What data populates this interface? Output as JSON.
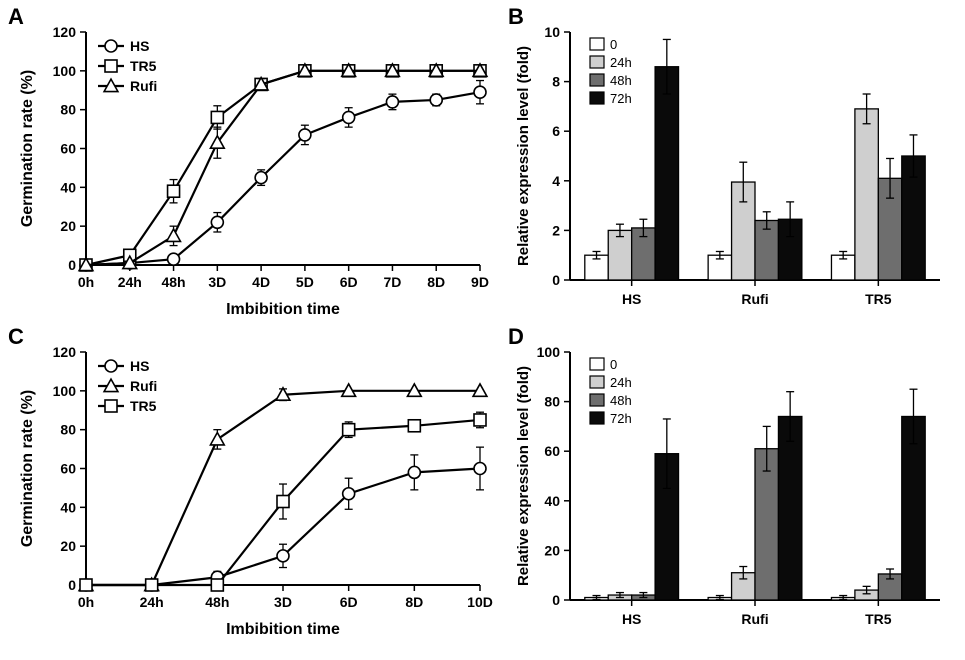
{
  "figure_width": 965,
  "figure_height": 660,
  "background_color": "#ffffff",
  "axis_color": "#000000",
  "error_bar_color": "#000000",
  "font_family": "Arial, Helvetica, sans-serif",
  "panelA": {
    "type": "line",
    "label": "A",
    "ylabel": "Germination rate (%)",
    "xlabel": "Imbibition time",
    "label_fontsize": 16,
    "label_fontweight": "bold",
    "tick_fontsize": 14,
    "tick_fontweight": "bold",
    "line_width": 2.2,
    "marker_size": 6,
    "marker_fill": "#ffffff",
    "marker_stroke": "#000000",
    "line_color": "#000000",
    "categories": [
      "0h",
      "24h",
      "48h",
      "3D",
      "4D",
      "5D",
      "6D",
      "7D",
      "8D",
      "9D"
    ],
    "ylim": [
      0,
      120
    ],
    "yticks": [
      0,
      20,
      40,
      60,
      80,
      100,
      120
    ],
    "legend": {
      "position": "top-left",
      "fontsize": 14
    },
    "series": [
      {
        "name": "HS",
        "marker": "circle",
        "values": [
          0,
          1,
          3,
          22,
          45,
          67,
          76,
          84,
          85,
          89
        ],
        "err": [
          0,
          1,
          2,
          5,
          4,
          5,
          5,
          4,
          3,
          6
        ]
      },
      {
        "name": "TR5",
        "marker": "square",
        "values": [
          0,
          5,
          38,
          76,
          93,
          100,
          100,
          100,
          100,
          100
        ],
        "err": [
          0,
          2,
          6,
          6,
          2,
          0,
          0,
          0,
          0,
          0
        ]
      },
      {
        "name": "Rufi",
        "marker": "triangle",
        "values": [
          0,
          1,
          15,
          63,
          93,
          100,
          100,
          100,
          100,
          100
        ],
        "err": [
          0,
          1,
          5,
          8,
          3,
          0,
          0,
          0,
          0,
          0
        ]
      }
    ]
  },
  "panelB": {
    "type": "bar",
    "label": "B",
    "ylabel": "Relative expression level (fold)",
    "label_fontsize": 15,
    "label_fontweight": "bold",
    "tick_fontsize": 14,
    "tick_fontweight": "bold",
    "groups": [
      "HS",
      "Rufi",
      "TR5"
    ],
    "subgroups": [
      "0",
      "24h",
      "48h",
      "72h"
    ],
    "bar_colors": [
      "#ffffff",
      "#cfcfcf",
      "#6e6e6e",
      "#0a0a0a"
    ],
    "bar_border": "#000000",
    "bar_width": 0.19,
    "ylim": [
      0,
      10
    ],
    "yticks": [
      0,
      2,
      4,
      6,
      8,
      10
    ],
    "values": [
      [
        1.0,
        2.0,
        2.1,
        8.6
      ],
      [
        1.0,
        3.95,
        2.4,
        2.45
      ],
      [
        1.0,
        6.9,
        4.1,
        5.0
      ]
    ],
    "err": [
      [
        0.15,
        0.25,
        0.35,
        1.1
      ],
      [
        0.15,
        0.8,
        0.35,
        0.7
      ],
      [
        0.15,
        0.6,
        0.8,
        0.85
      ]
    ],
    "legend": {
      "position": "top-left",
      "fontsize": 13
    }
  },
  "panelC": {
    "type": "line",
    "label": "C",
    "ylabel": "Germination rate (%)",
    "xlabel": "Imbibition time",
    "label_fontsize": 16,
    "label_fontweight": "bold",
    "tick_fontsize": 14,
    "tick_fontweight": "bold",
    "line_width": 2.2,
    "marker_size": 6,
    "marker_fill": "#ffffff",
    "marker_stroke": "#000000",
    "line_color": "#000000",
    "categories": [
      "0h",
      "24h",
      "48h",
      "3D",
      "6D",
      "8D",
      "10D"
    ],
    "ylim": [
      0,
      120
    ],
    "yticks": [
      0,
      20,
      40,
      60,
      80,
      100,
      120
    ],
    "legend": {
      "position": "top-left",
      "fontsize": 14
    },
    "series": [
      {
        "name": "HS",
        "marker": "circle",
        "values": [
          0,
          0,
          4,
          15,
          47,
          58,
          60
        ],
        "err": [
          0,
          0,
          3,
          6,
          8,
          9,
          11
        ]
      },
      {
        "name": "Rufi",
        "marker": "triangle",
        "values": [
          0,
          0,
          75,
          98,
          100,
          100,
          100
        ],
        "err": [
          0,
          0,
          5,
          3,
          0,
          0,
          0
        ]
      },
      {
        "name": "TR5",
        "marker": "square",
        "values": [
          0,
          0,
          0,
          43,
          80,
          82,
          85
        ],
        "err": [
          0,
          0,
          0,
          9,
          4,
          3,
          4
        ]
      }
    ]
  },
  "panelD": {
    "type": "bar",
    "label": "D",
    "ylabel": "Relative expression level (fold)",
    "label_fontsize": 15,
    "label_fontweight": "bold",
    "tick_fontsize": 14,
    "tick_fontweight": "bold",
    "groups": [
      "HS",
      "Rufi",
      "TR5"
    ],
    "subgroups": [
      "0",
      "24h",
      "48h",
      "72h"
    ],
    "bar_colors": [
      "#ffffff",
      "#cfcfcf",
      "#6e6e6e",
      "#0a0a0a"
    ],
    "bar_border": "#000000",
    "bar_width": 0.19,
    "ylim": [
      0,
      100
    ],
    "yticks": [
      0,
      20,
      40,
      60,
      80,
      100
    ],
    "values": [
      [
        1,
        2,
        2,
        59
      ],
      [
        1,
        11,
        61,
        74
      ],
      [
        1,
        4,
        10.5,
        74
      ]
    ],
    "err": [
      [
        0.8,
        1,
        1,
        14
      ],
      [
        0.8,
        2.5,
        9,
        10
      ],
      [
        0.8,
        1.5,
        2,
        11
      ]
    ],
    "legend": {
      "position": "top-left",
      "fontsize": 13
    }
  }
}
